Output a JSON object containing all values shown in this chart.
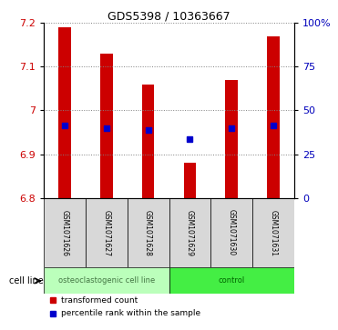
{
  "title": "GDS5398 / 10363667",
  "samples": [
    "GSM1071626",
    "GSM1071627",
    "GSM1071628",
    "GSM1071629",
    "GSM1071630",
    "GSM1071631"
  ],
  "bar_bottom": 6.8,
  "bar_top": [
    7.19,
    7.13,
    7.06,
    6.88,
    7.07,
    7.17
  ],
  "percentile_values": [
    6.965,
    6.96,
    6.955,
    6.935,
    6.96,
    6.965
  ],
  "ylim": [
    6.8,
    7.2
  ],
  "yticks_left": [
    6.8,
    6.9,
    7.0,
    7.1,
    7.2
  ],
  "yticks_left_labels": [
    "6.8",
    "6.9",
    "7",
    "7.1",
    "7.2"
  ],
  "yticks_right": [
    0,
    25,
    50,
    75,
    100
  ],
  "yticks_right_values": [
    6.8,
    6.9,
    7.0,
    7.1,
    7.2
  ],
  "yticks_right_labels": [
    "0",
    "25",
    "50",
    "75",
    "100%"
  ],
  "bar_color": "#cc0000",
  "dot_color": "#0000cc",
  "group_labels": [
    "osteoclastogenic cell line",
    "control"
  ],
  "group_colors": [
    "#bbffbb",
    "#44ee44"
  ],
  "group_text_colors": [
    "#447744",
    "#006600"
  ],
  "cell_line_label": "cell line",
  "legend_labels": [
    "transformed count",
    "percentile rank within the sample"
  ],
  "legend_colors": [
    "#cc0000",
    "#0000cc"
  ],
  "left_label_color": "#cc0000",
  "right_label_color": "#0000bb",
  "bar_width": 0.3
}
